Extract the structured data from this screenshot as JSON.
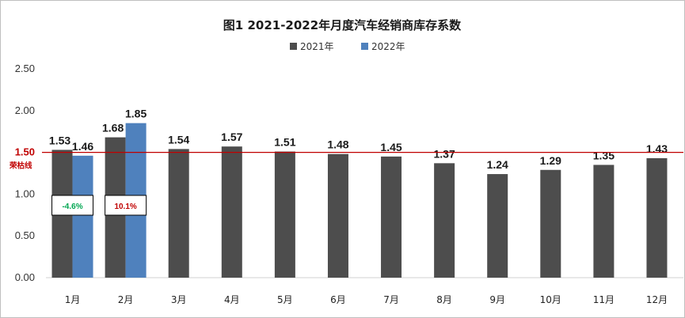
{
  "chart_data": {
    "type": "bar",
    "title": "图1  2021-2022年月度汽车经销商库存系数",
    "categories": [
      "1月",
      "2月",
      "3月",
      "4月",
      "5月",
      "6月",
      "7月",
      "8月",
      "9月",
      "10月",
      "11月",
      "12月"
    ],
    "series": [
      {
        "name": "2021年",
        "color": "#4d4d4d",
        "values": [
          1.53,
          1.68,
          1.54,
          1.57,
          1.51,
          1.48,
          1.45,
          1.37,
          1.24,
          1.29,
          1.35,
          1.43
        ]
      },
      {
        "name": "2022年",
        "color": "#4f81bd",
        "values": [
          1.46,
          1.85,
          null,
          null,
          null,
          null,
          null,
          null,
          null,
          null,
          null,
          null
        ]
      }
    ],
    "ylim": [
      0,
      2.5
    ],
    "yticks": [
      "0.00",
      "0.50",
      "1.00",
      "1.50",
      "2.00",
      "2.50"
    ],
    "reference_line": {
      "value": 1.5,
      "value_label": "1.50",
      "label": "荣枯线",
      "color": "#c00000"
    },
    "annotations": [
      {
        "category": "1月",
        "text": "-4.6%",
        "color": "#00a651"
      },
      {
        "category": "2月",
        "text": "10.1%",
        "color": "#c00000"
      }
    ],
    "legend_position": "top-center",
    "grid": false
  }
}
